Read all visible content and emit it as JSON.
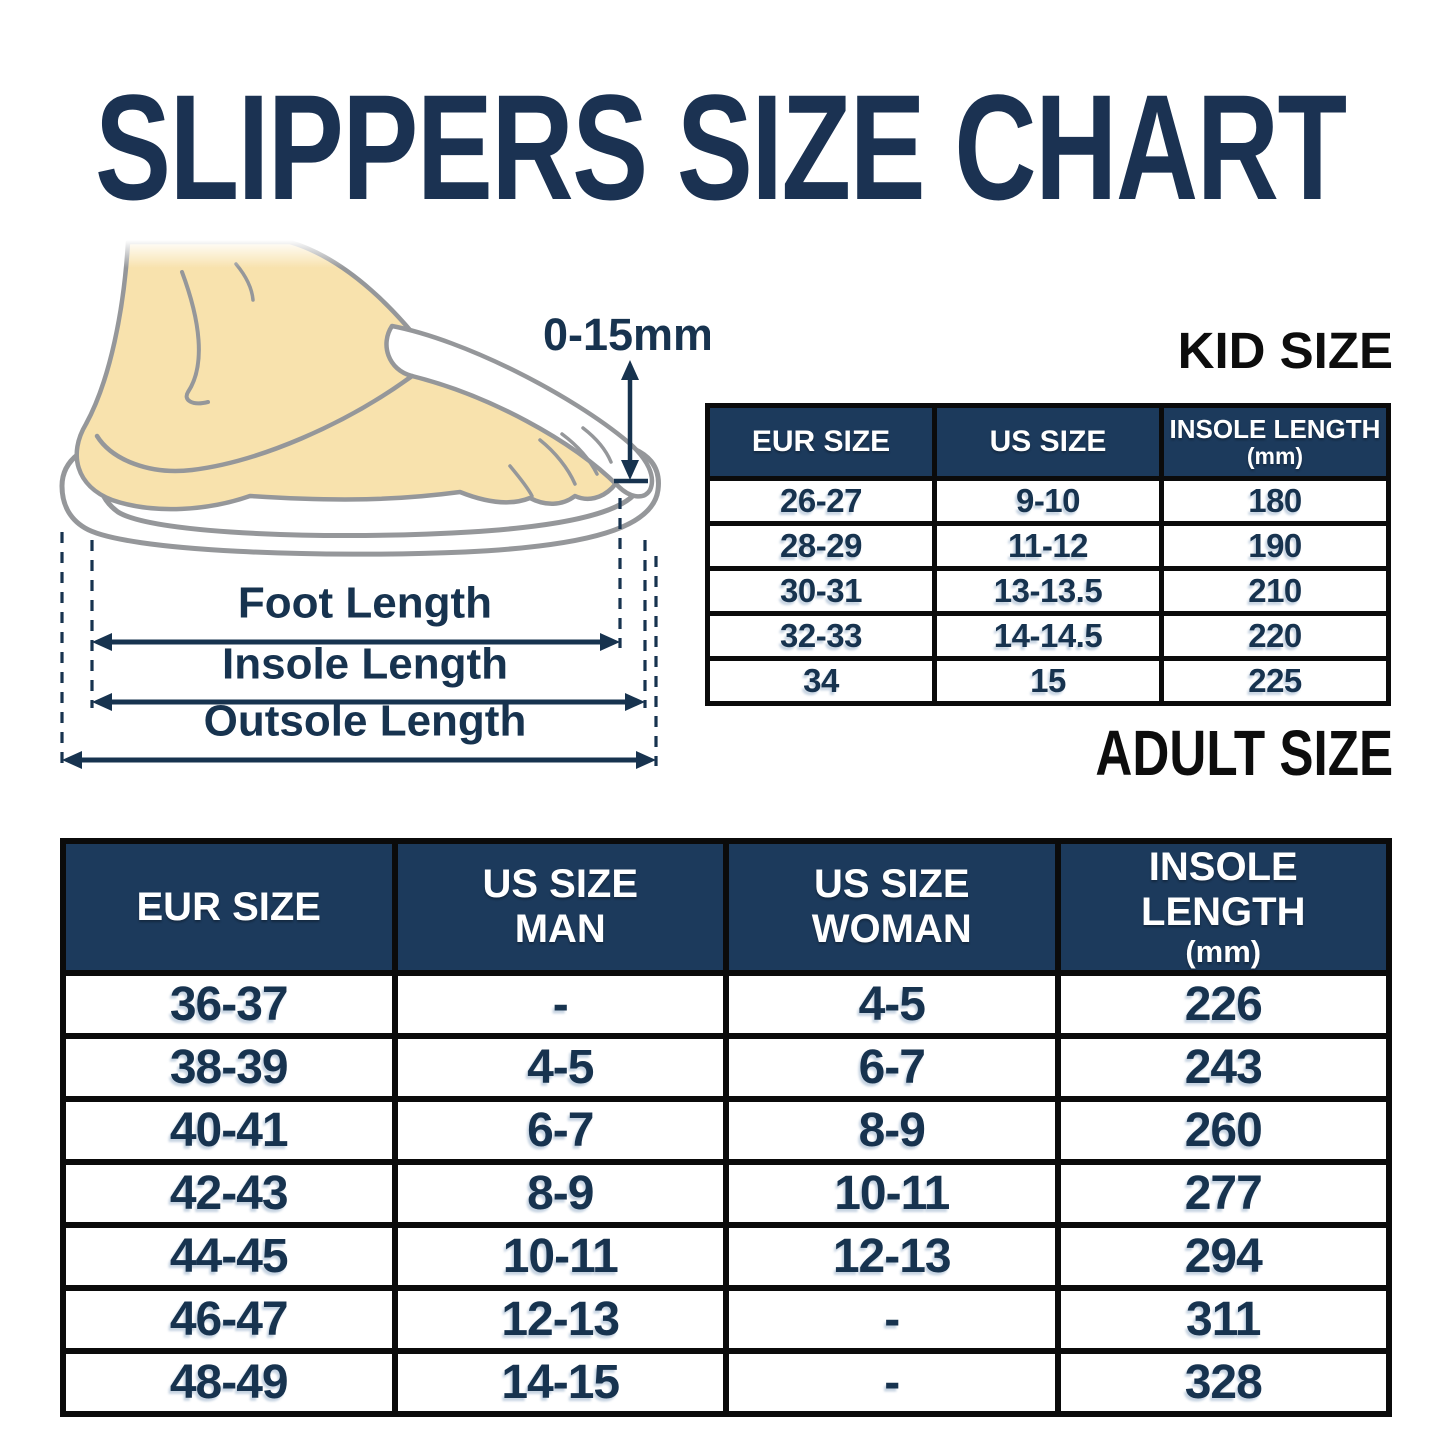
{
  "title": "SLIPPERS SIZE CHART",
  "colors": {
    "title_navy": "#1B3252",
    "table_header_bg": "#1C3A5C",
    "data_text_navy": "#17334F",
    "heading_black": "#0D0D0D",
    "border_black": "#0B0B0B",
    "foot_skin": "#F8E2AD",
    "outline_gray": "#95979A",
    "background": "#FFFFFF"
  },
  "diagram": {
    "gap_label": "0-15mm",
    "foot_length_label": "Foot Length",
    "insole_length_label": "Insole Length",
    "outsole_length_label": "Outsole Length"
  },
  "kid_section": {
    "heading": "KID SIZE",
    "columns": [
      {
        "lines": [
          "EUR SIZE"
        ]
      },
      {
        "lines": [
          "US SIZE"
        ]
      },
      {
        "lines": [
          "INSOLE LENGTH",
          "(mm)"
        ],
        "small_sub": true
      }
    ]
  },
  "adult_section": {
    "heading": "ADULT SIZE",
    "columns": [
      {
        "lines": [
          "EUR SIZE"
        ]
      },
      {
        "lines": [
          "US SIZE",
          "MAN"
        ]
      },
      {
        "lines": [
          "US SIZE",
          "WOMAN"
        ]
      },
      {
        "lines": [
          "INSOLE LENGTH",
          "(mm)"
        ],
        "small_sub": true
      }
    ]
  },
  "chart_data": [
    {
      "type": "table",
      "title": "KID SIZE",
      "columns": [
        "EUR SIZE",
        "US SIZE",
        "INSOLE LENGTH (mm)"
      ],
      "rows": [
        [
          "26-27",
          "9-10",
          "180"
        ],
        [
          "28-29",
          "11-12",
          "190"
        ],
        [
          "30-31",
          "13-13.5",
          "210"
        ],
        [
          "32-33",
          "14-14.5",
          "220"
        ],
        [
          "34",
          "15",
          "225"
        ]
      ]
    },
    {
      "type": "table",
      "title": "ADULT SIZE",
      "columns": [
        "EUR SIZE",
        "US SIZE MAN",
        "US SIZE WOMAN",
        "INSOLE LENGTH (mm)"
      ],
      "rows": [
        [
          "36-37",
          "-",
          "4-5",
          "226"
        ],
        [
          "38-39",
          "4-5",
          "6-7",
          "243"
        ],
        [
          "40-41",
          "6-7",
          "8-9",
          "260"
        ],
        [
          "42-43",
          "8-9",
          "10-11",
          "277"
        ],
        [
          "44-45",
          "10-11",
          "12-13",
          "294"
        ],
        [
          "46-47",
          "12-13",
          "-",
          "311"
        ],
        [
          "48-49",
          "14-15",
          "-",
          "328"
        ]
      ]
    }
  ]
}
